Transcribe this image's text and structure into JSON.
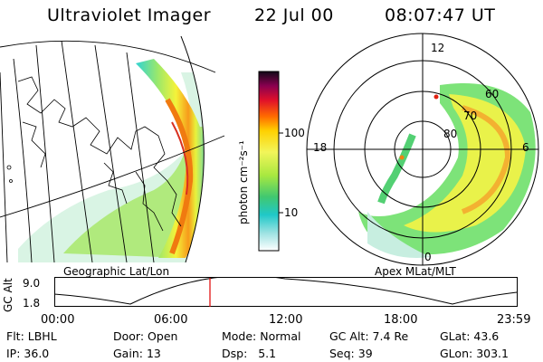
{
  "header": {
    "instrument": "Ultraviolet Imager",
    "date": "22 Jul 00",
    "time": "08:07:47 UT"
  },
  "colorbar": {
    "unit": "photon cm⁻²s⁻¹",
    "ticks": [
      "100",
      "10"
    ]
  },
  "left_panel": {
    "caption": "Geographic Lat/Lon"
  },
  "right_panel": {
    "caption": "Apex MLat/MLT",
    "mlt_labels": {
      "top": "12",
      "left": "18",
      "right": "6",
      "bottom": "0"
    },
    "mlat_labels": [
      "60",
      "70",
      "80"
    ]
  },
  "altitude_plot": {
    "ylabel": "GC Alt",
    "yticks": [
      "9.0",
      "1.8"
    ],
    "xticks": [
      "00:00",
      "06:00",
      "12:00",
      "18:00",
      "23:59"
    ],
    "marker_time": "08:07:47",
    "marker_color": "#e00000"
  },
  "footer": {
    "row1": [
      {
        "label": "Flt:",
        "value": "LBHL"
      },
      {
        "label": "Door:",
        "value": "Open"
      },
      {
        "label": "Mode:",
        "value": "Normal"
      },
      {
        "label": "GC Alt:",
        "value": "7.4 Re"
      },
      {
        "label": "GLat:",
        "value": "43.6"
      }
    ],
    "row2": [
      {
        "label": "IP:",
        "value": "36.0"
      },
      {
        "label": "Gain:",
        "value": "13"
      },
      {
        "label": "Dsp:",
        "value": "5.1"
      },
      {
        "label": "Seq:",
        "value": "39"
      },
      {
        "label": "GLon:",
        "value": "303.1"
      }
    ]
  }
}
